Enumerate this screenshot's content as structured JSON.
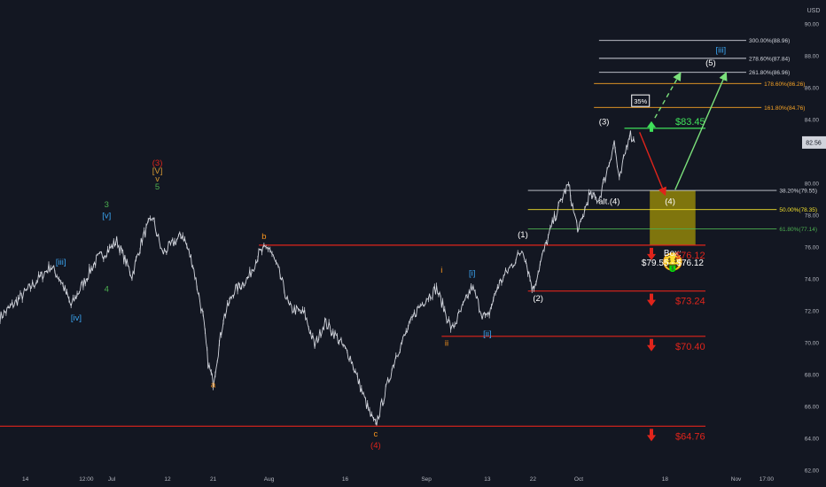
{
  "chart_data": {
    "type": "line",
    "symbol_currency": "USD",
    "y_axis": {
      "ylim": [
        62,
        91.5
      ],
      "ticks": [
        {
          "v": 90.0,
          "t": "90.00"
        },
        {
          "v": 88.0,
          "t": "88.00"
        },
        {
          "v": 86.0,
          "t": "86.00"
        },
        {
          "v": 84.0,
          "t": "84.00"
        },
        {
          "v": 80.0,
          "t": "80.00"
        },
        {
          "v": 78.0,
          "t": "78.00"
        },
        {
          "v": 76.0,
          "t": "76.00"
        },
        {
          "v": 74.0,
          "t": "74.00"
        },
        {
          "v": 72.0,
          "t": "72.00"
        },
        {
          "v": 70.0,
          "t": "70.00"
        },
        {
          "v": 68.0,
          "t": "68.00"
        },
        {
          "v": 66.0,
          "t": "66.00"
        },
        {
          "v": 64.0,
          "t": "64.00"
        },
        {
          "v": 62.0,
          "t": "62.00"
        }
      ],
      "last_price": "82.56"
    },
    "x_axis": {
      "xlim": [
        "2021-06-09",
        "2021-11-14"
      ],
      "ticks": [
        {
          "date": "2021-06-14",
          "t": "14"
        },
        {
          "date": "2021-06-26",
          "t": "12:00"
        },
        {
          "date": "2021-07-01",
          "t": "Jul"
        },
        {
          "date": "2021-07-12",
          "t": "12"
        },
        {
          "date": "2021-07-21",
          "t": "21"
        },
        {
          "date": "2021-08-01",
          "t": "Aug"
        },
        {
          "date": "2021-08-16",
          "t": "16"
        },
        {
          "date": "2021-09-01",
          "t": "Sep"
        },
        {
          "date": "2021-09-13",
          "t": "13"
        },
        {
          "date": "2021-09-22",
          "t": "22"
        },
        {
          "date": "2021-10-01",
          "t": "Oct"
        },
        {
          "date": "2021-10-18",
          "t": "18"
        },
        {
          "date": "2021-11-01",
          "t": "Nov"
        },
        {
          "date": "2021-11-07",
          "t": "17:00"
        }
      ]
    },
    "price_path": [
      [
        "2021-06-09",
        71.6
      ],
      [
        "2021-06-12",
        72.5
      ],
      [
        "2021-06-16",
        73.8
      ],
      [
        "2021-06-19",
        74.8
      ],
      [
        "2021-06-21",
        73.9
      ],
      [
        "2021-06-23",
        72.3
      ],
      [
        "2021-06-25",
        73.5
      ],
      [
        "2021-06-28",
        75.2
      ],
      [
        "2021-07-01",
        76.0
      ],
      [
        "2021-07-02",
        76.4
      ],
      [
        "2021-07-05",
        74.2
      ],
      [
        "2021-07-07",
        76.5
      ],
      [
        "2021-07-09",
        77.9
      ],
      [
        "2021-07-11",
        75.6
      ],
      [
        "2021-07-13",
        76.2
      ],
      [
        "2021-07-15",
        76.8
      ],
      [
        "2021-07-17",
        74.9
      ],
      [
        "2021-07-19",
        71.6
      ],
      [
        "2021-07-20",
        68.7
      ],
      [
        "2021-07-21",
        67.5
      ],
      [
        "2021-07-23",
        71.5
      ],
      [
        "2021-07-25",
        73.2
      ],
      [
        "2021-07-28",
        74.1
      ],
      [
        "2021-07-30",
        75.6
      ],
      [
        "2021-08-01",
        76.0
      ],
      [
        "2021-08-03",
        74.4
      ],
      [
        "2021-08-05",
        72.2
      ],
      [
        "2021-08-08",
        71.8
      ],
      [
        "2021-08-10",
        69.8
      ],
      [
        "2021-08-12",
        71.3
      ],
      [
        "2021-08-14",
        70.5
      ],
      [
        "2021-08-17",
        69.1
      ],
      [
        "2021-08-19",
        67.2
      ],
      [
        "2021-08-21",
        65.4
      ],
      [
        "2021-08-22",
        64.8
      ],
      [
        "2021-08-24",
        67.0
      ],
      [
        "2021-08-26",
        69.2
      ],
      [
        "2021-08-28",
        70.6
      ],
      [
        "2021-08-30",
        72.0
      ],
      [
        "2021-09-01",
        72.8
      ],
      [
        "2021-09-03",
        73.4
      ],
      [
        "2021-09-06",
        70.8
      ],
      [
        "2021-09-08",
        72.1
      ],
      [
        "2021-09-10",
        73.5
      ],
      [
        "2021-09-12",
        71.8
      ],
      [
        "2021-09-13",
        71.5
      ],
      [
        "2021-09-15",
        73.5
      ],
      [
        "2021-09-17",
        74.5
      ],
      [
        "2021-09-19",
        75.4
      ],
      [
        "2021-09-20",
        75.9
      ],
      [
        "2021-09-21",
        74.6
      ],
      [
        "2021-09-22",
        73.3
      ],
      [
        "2021-09-24",
        75.6
      ],
      [
        "2021-09-26",
        77.6
      ],
      [
        "2021-09-28",
        79.3
      ],
      [
        "2021-09-29",
        79.9
      ],
      [
        "2021-09-30",
        78.2
      ],
      [
        "2021-10-01",
        77.0
      ],
      [
        "2021-10-03",
        79.2
      ],
      [
        "2021-10-05",
        79.0
      ],
      [
        "2021-10-07",
        81.3
      ],
      [
        "2021-10-08",
        82.6
      ],
      [
        "2021-10-09",
        80.1
      ],
      [
        "2021-10-11",
        83.2
      ],
      [
        "2021-10-12",
        82.56
      ]
    ],
    "horizontal_levels": [
      {
        "price": 76.12,
        "label": "$76.12",
        "color": "#e0241b",
        "from": "2021-07-30"
      },
      {
        "price": 73.24,
        "label": "$73.24",
        "color": "#e0241b",
        "from": "2021-09-21"
      },
      {
        "price": 70.4,
        "label": "$70.40",
        "color": "#e0241b",
        "from": "2021-09-04"
      },
      {
        "price": 64.76,
        "label": "$64.76",
        "color": "#e0241b",
        "from": "2021-06-09"
      },
      {
        "price": 83.45,
        "label": "$83.45",
        "color": "#3fe15a",
        "from": "2021-10-10"
      }
    ],
    "fib_levels": [
      {
        "price": 88.96,
        "label": "300.00%(88.96)",
        "color": "#d1d4dc",
        "from": "2021-10-05",
        "to": "2021-11-03"
      },
      {
        "price": 87.84,
        "label": "278.60%(87.84)",
        "color": "#d1d4dc",
        "from": "2021-10-05",
        "to": "2021-11-03"
      },
      {
        "price": 86.96,
        "label": "261.80%(86.96)",
        "color": "#d1d4dc",
        "from": "2021-10-05",
        "to": "2021-11-03"
      },
      {
        "price": 86.26,
        "label": "178.60%(86.26)",
        "color": "#f7a325",
        "from": "2021-10-04",
        "to": "2021-11-06"
      },
      {
        "price": 84.76,
        "label": "161.80%(84.76)",
        "color": "#f7a325",
        "from": "2021-10-04",
        "to": "2021-11-06"
      },
      {
        "price": 79.55,
        "label": "38.20%(79.55)",
        "color": "#d1d4dc",
        "from": "2021-09-21",
        "to": "2021-11-09"
      },
      {
        "price": 78.35,
        "label": "50.00%(78.35)",
        "color": "#f2e02c",
        "from": "2021-09-21",
        "to": "2021-11-09"
      },
      {
        "price": 77.14,
        "label": "61.80%(77.14)",
        "color": "#4caf50",
        "from": "2021-09-21",
        "to": "2021-11-09"
      }
    ],
    "target_box": {
      "top": 79.55,
      "bottom": 76.12,
      "from": "2021-10-15",
      "to": "2021-10-24",
      "color": "#c8b400"
    },
    "box_label": {
      "line1": "Box:",
      "line2": "$79.55 - $76.12"
    },
    "box_emoji": "🤑",
    "probability_label": "35%",
    "wave_labels": [
      {
        "t": "[iii]",
        "date": "2021-06-21",
        "price": 74.9,
        "color": "#3ba7f5"
      },
      {
        "t": "[iv]",
        "date": "2021-06-24",
        "price": 71.4,
        "color": "#3ba7f5"
      },
      {
        "t": "3",
        "date": "2021-06-30",
        "price": 78.5,
        "color": "#4caf50"
      },
      {
        "t": "[v]",
        "date": "2021-06-30",
        "price": 77.8,
        "color": "#3ba7f5"
      },
      {
        "t": "4",
        "date": "2021-06-30",
        "price": 73.2,
        "color": "#4caf50"
      },
      {
        "t": "(3)",
        "date": "2021-07-10",
        "price": 81.1,
        "color": "#e0241b"
      },
      {
        "t": "[V]",
        "date": "2021-07-10",
        "price": 80.6,
        "color": "#d89b33"
      },
      {
        "t": "v",
        "date": "2021-07-10",
        "price": 80.1,
        "color": "#d89b33"
      },
      {
        "t": "5",
        "date": "2021-07-10",
        "price": 79.6,
        "color": "#4caf50"
      },
      {
        "t": "a",
        "date": "2021-07-21",
        "price": 67.2,
        "color": "#f7941d"
      },
      {
        "t": "b",
        "date": "2021-07-31",
        "price": 76.5,
        "color": "#f7941d"
      },
      {
        "t": "c",
        "date": "2021-08-22",
        "price": 64.1,
        "color": "#f7941d"
      },
      {
        "t": "(4)",
        "date": "2021-08-22",
        "price": 63.4,
        "color": "#e0241b"
      },
      {
        "t": "i",
        "date": "2021-09-04",
        "price": 74.4,
        "color": "#f7941d"
      },
      {
        "t": "[i]",
        "date": "2021-09-10",
        "price": 74.2,
        "color": "#3ba7f5"
      },
      {
        "t": "ii",
        "date": "2021-09-05",
        "price": 69.8,
        "color": "#f7941d"
      },
      {
        "t": "[ii]",
        "date": "2021-09-13",
        "price": 70.4,
        "color": "#3ba7f5"
      },
      {
        "t": "(1)",
        "date": "2021-09-20",
        "price": 76.6,
        "color": "#ffffff"
      },
      {
        "t": "(2)",
        "date": "2021-09-23",
        "price": 72.6,
        "color": "#ffffff"
      },
      {
        "t": "(3)",
        "date": "2021-10-06",
        "price": 83.7,
        "color": "#ffffff"
      },
      {
        "t": "alt.(4)",
        "date": "2021-10-07",
        "price": 78.7,
        "color": "#ffffff"
      },
      {
        "t": "(4)",
        "date": "2021-10-19",
        "price": 78.7,
        "color": "#ffffff"
      },
      {
        "t": "(5)",
        "date": "2021-10-27",
        "price": 87.4,
        "color": "#ffffff"
      },
      {
        "t": "[iii]",
        "date": "2021-10-29",
        "price": 88.2,
        "color": "#3ba7f5"
      }
    ],
    "projection_arrows": [
      {
        "from": [
          "2021-10-13",
          83.2
        ],
        "to": [
          "2021-10-18",
          79.3
        ],
        "color": "#e0241b",
        "dashed": false
      },
      {
        "from": [
          "2021-10-20",
          79.6
        ],
        "to": [
          "2021-10-30",
          86.9
        ],
        "color": "#7be07b",
        "dashed": false
      },
      {
        "from": [
          "2021-10-16",
          84.1
        ],
        "to": [
          "2021-10-21",
          86.9
        ],
        "color": "#7be07b",
        "dashed": true
      }
    ],
    "colors": {
      "bg": "#131722",
      "axis_text": "#b2b5be",
      "price": "#d1d4dc",
      "last_price_bg": "#d1d4dc"
    }
  }
}
